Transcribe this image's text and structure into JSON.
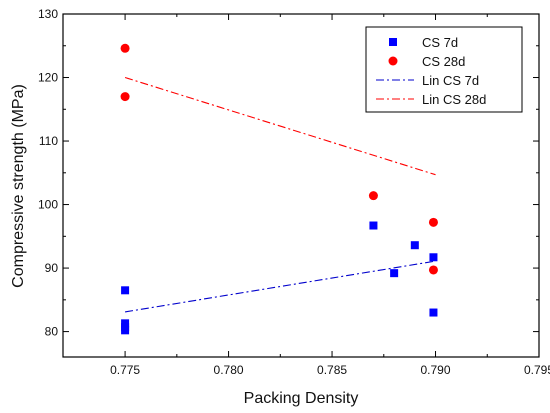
{
  "chart_data": {
    "type": "scatter",
    "title": "",
    "xlabel": "Packing Density",
    "ylabel": "Compressive strength (MPa)",
    "xlim": [
      0.772,
      0.795
    ],
    "ylim": [
      76,
      130
    ],
    "x_ticks": [
      0.775,
      0.78,
      0.785,
      0.79,
      0.795
    ],
    "x_tick_labels": [
      "0.775",
      "0.780",
      "0.785",
      "0.790",
      "0.795"
    ],
    "y_ticks": [
      80,
      90,
      100,
      110,
      120,
      130
    ],
    "y_tick_labels": [
      "80",
      "90",
      "100",
      "110",
      "120",
      "130"
    ],
    "grid": false,
    "legend_position": "top-right",
    "series": [
      {
        "name": "CS 7d",
        "kind": "scatter",
        "marker": "square",
        "color": "#0000ff",
        "points": [
          [
            0.775,
            86.5
          ],
          [
            0.775,
            81.3
          ],
          [
            0.775,
            80.7
          ],
          [
            0.775,
            80.2
          ],
          [
            0.787,
            96.7
          ],
          [
            0.788,
            89.2
          ],
          [
            0.789,
            93.6
          ],
          [
            0.7899,
            91.7
          ],
          [
            0.7899,
            83.0
          ]
        ]
      },
      {
        "name": "CS 28d",
        "kind": "scatter",
        "marker": "circle",
        "color": "#ff0000",
        "points": [
          [
            0.775,
            124.6
          ],
          [
            0.775,
            117.0
          ],
          [
            0.787,
            101.4
          ],
          [
            0.7899,
            97.2
          ],
          [
            0.7899,
            89.7
          ]
        ]
      },
      {
        "name": "Lin CS 7d",
        "kind": "line",
        "dash": "dash-dot",
        "color": "#0000cc",
        "points": [
          [
            0.775,
            83.1
          ],
          [
            0.79,
            91.1
          ]
        ]
      },
      {
        "name": "Lin CS 28d",
        "kind": "line",
        "dash": "dash-dot",
        "color": "#ff0000",
        "points": [
          [
            0.775,
            120.0
          ],
          [
            0.79,
            104.7
          ]
        ]
      }
    ]
  }
}
